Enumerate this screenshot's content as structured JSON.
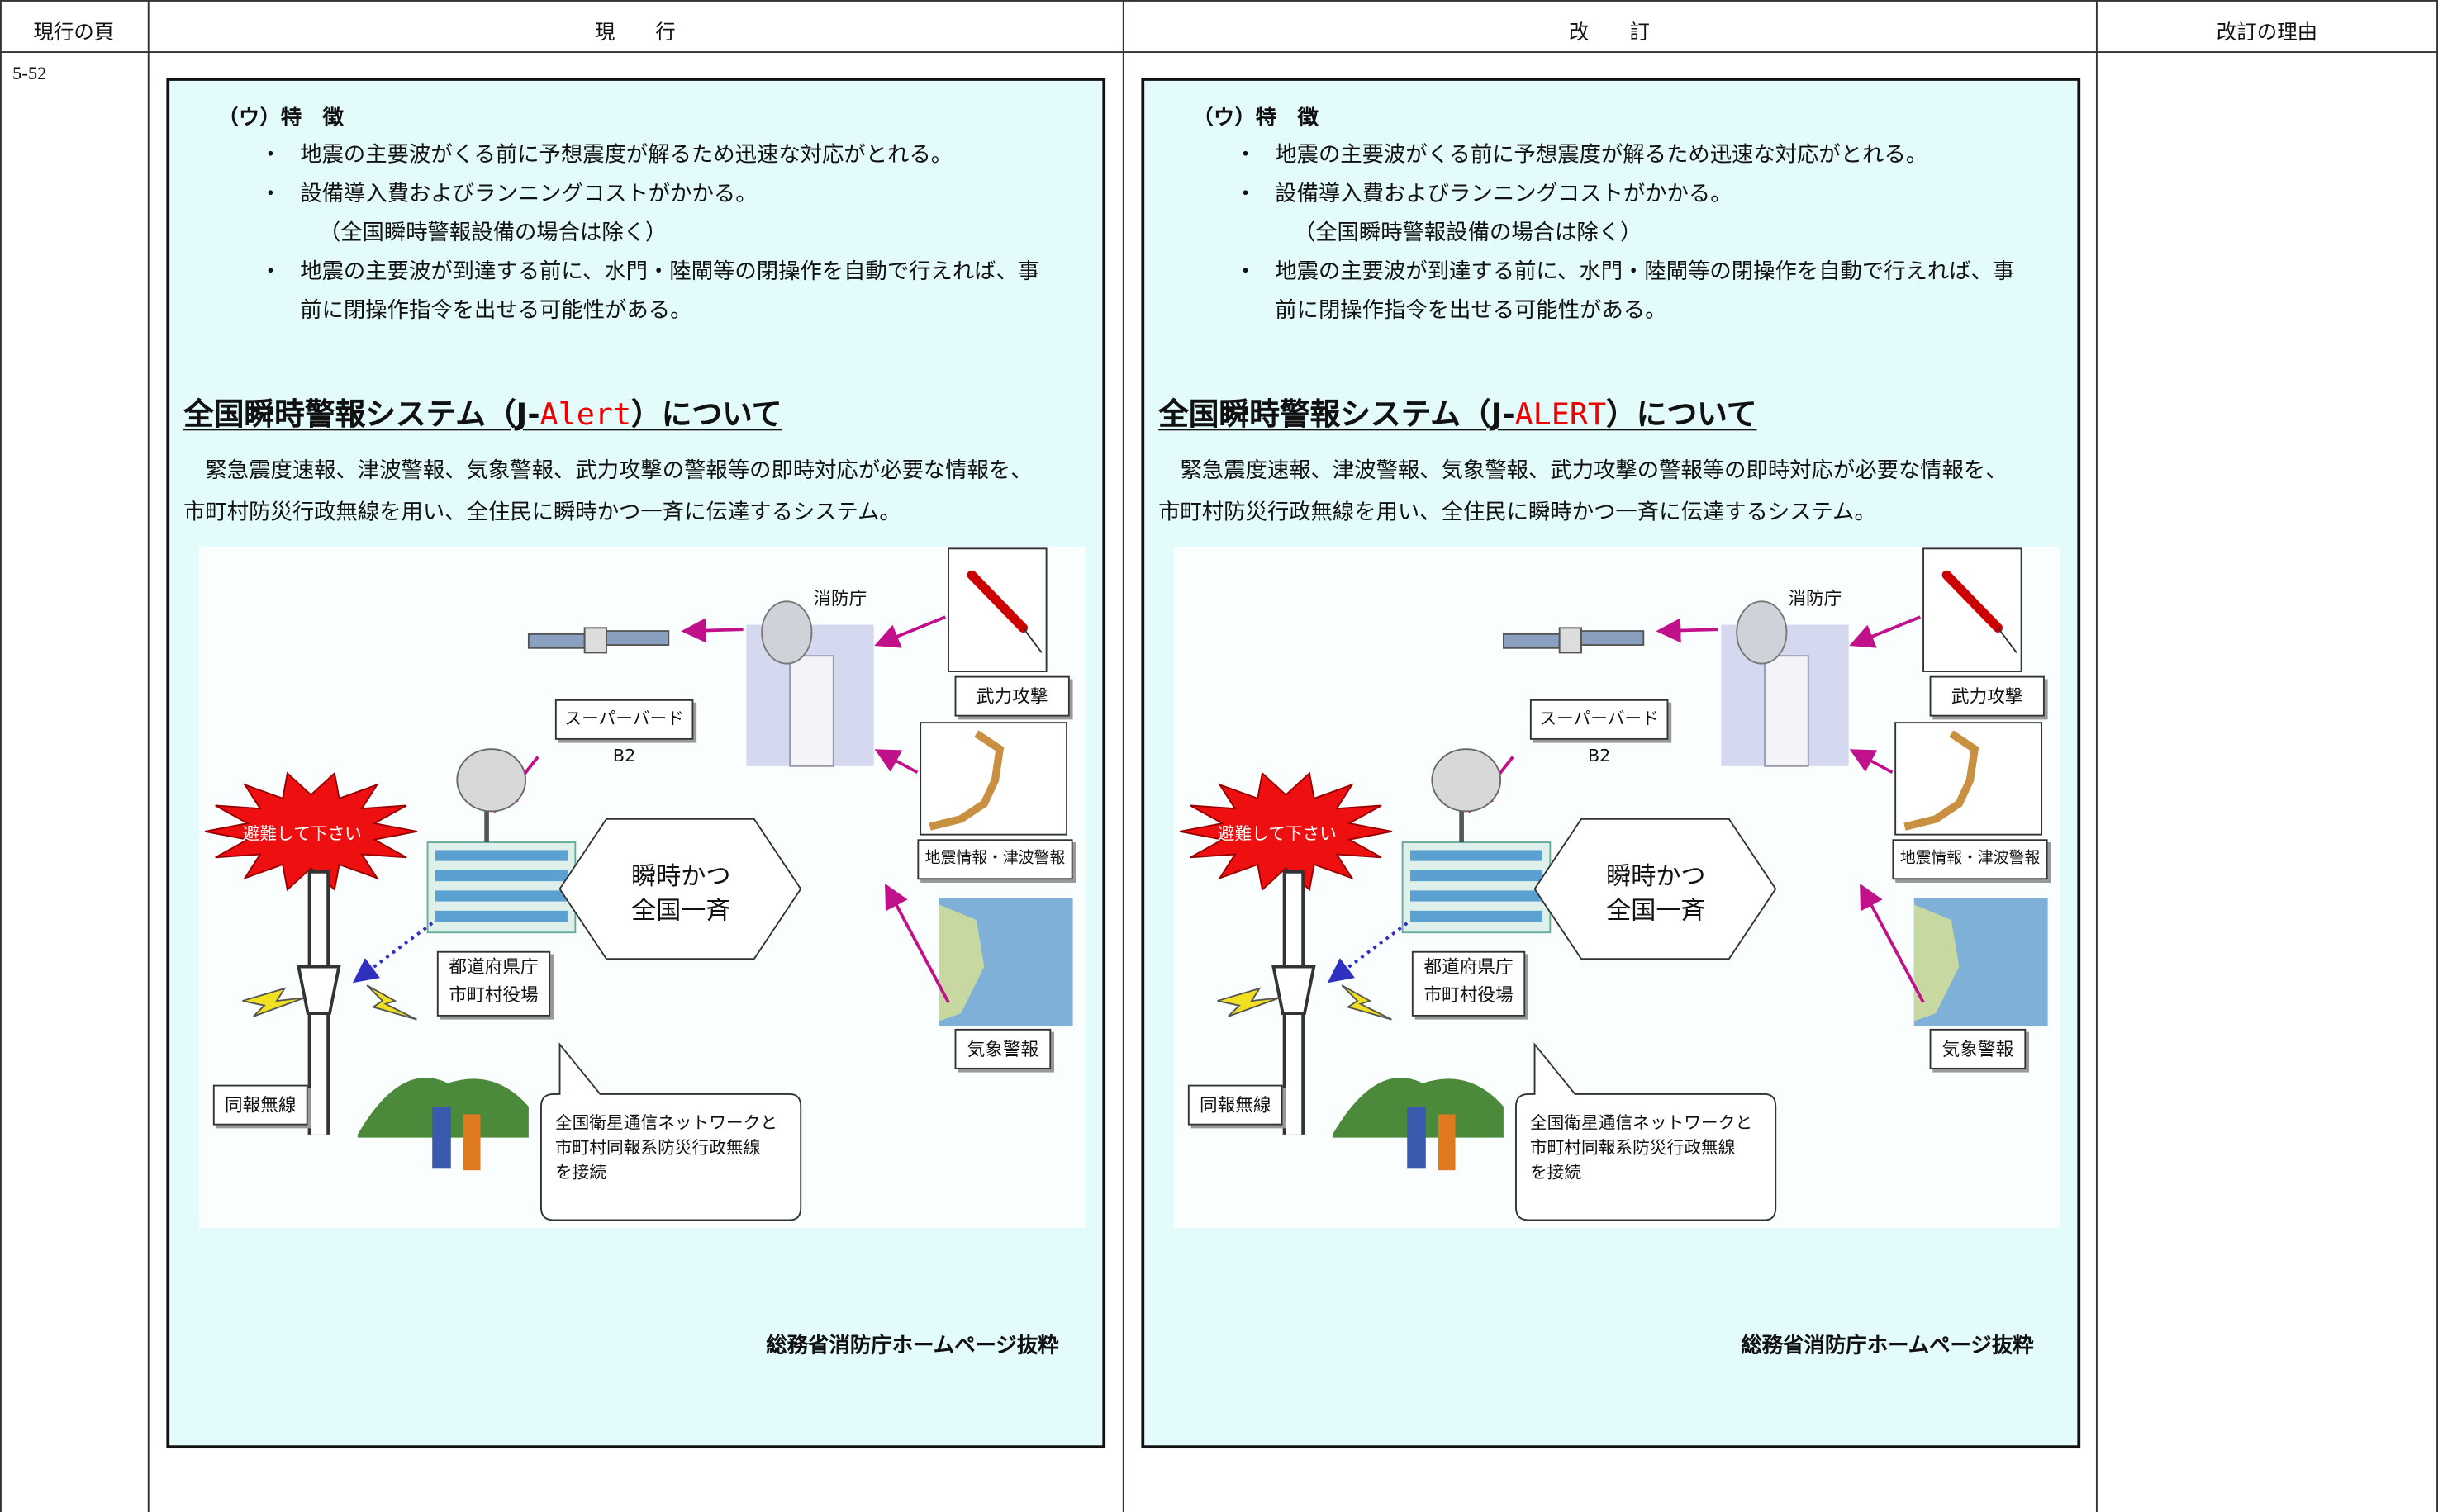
{
  "header": {
    "columns": [
      "現行の頁",
      "現　　行",
      "改　　訂",
      "改訂の理由"
    ]
  },
  "page": "5-52",
  "current": {
    "heading": "（ウ）特　徴",
    "items": [
      {
        "lines": [
          "地震の主要波がくる前に予想震度が解るため迅速な対応がとれる。"
        ]
      },
      {
        "lines": [
          "設備導入費およびランニングコストがかかる。",
          "（全国瞬時警報設備の場合は除く）"
        ]
      },
      {
        "lines": [
          "地震の主要波が到達する前に、水門・陸閘等の閉操作を自動で行えれば、事",
          "前に閉操作指令を出せる可能性がある。"
        ]
      }
    ],
    "title": {
      "before": "全国瞬時警報システム（J-",
      "highlight": "Alert",
      "after": "）について"
    },
    "paragraph": [
      "　緊急震度速報、津波警報、気象警報、武力攻撃の警報等の即時対応が必要な情報を、",
      "市町村防災行政無線を用い、全住民に瞬時かつ一斉に伝達するシステム。"
    ],
    "diagram": {
      "fdma": "消防庁",
      "attack": "武力攻撃",
      "quake": "地震情報・津波警報",
      "weather": "気象警報",
      "satellite": "スーパーバードB2",
      "evacuate": "避難して下さい",
      "office": [
        "都道府県庁",
        "市町村役場"
      ],
      "instant": [
        "瞬時かつ",
        "全国一斉"
      ],
      "radio": "同報無線",
      "network": [
        "全国衛星通信ネットワークと",
        "市町村同報系防災行政無線",
        "を接続"
      ]
    },
    "source": "総務省消防庁ホームページ抜粋"
  },
  "revised": {
    "heading": "（ウ）特　徴",
    "items": [
      {
        "lines": [
          "地震の主要波がくる前に予想震度が解るため迅速な対応がとれる。"
        ]
      },
      {
        "lines": [
          "設備導入費およびランニングコストがかかる。",
          "（全国瞬時警報設備の場合は除く）"
        ]
      },
      {
        "lines": [
          "地震の主要波が到達する前に、水門・陸閘等の閉操作を自動で行えれば、事",
          "前に閉操作指令を出せる可能性がある。"
        ]
      }
    ],
    "title": {
      "before": "全国瞬時警報システム（J-",
      "highlight": "ALERT",
      "after": "）について"
    },
    "paragraph": [
      "　緊急震度速報、津波警報、気象警報、武力攻撃の警報等の即時対応が必要な情報を、",
      "市町村防災行政無線を用い、全住民に瞬時かつ一斉に伝達するシステム。"
    ],
    "diagram": {
      "fdma": "消防庁",
      "attack": "武力攻撃",
      "quake": "地震情報・津波警報",
      "weather": "気象警報",
      "satellite": "スーパーバードB2",
      "evacuate": "避難して下さい",
      "office": [
        "都道府県庁",
        "市町村役場"
      ],
      "instant": [
        "瞬時かつ",
        "全国一斉"
      ],
      "radio": "同報無線",
      "network": [
        "全国衛星通信ネットワークと",
        "市町村同報系防災行政無線",
        "を接続"
      ]
    },
    "source": "総務省消防庁ホームページ抜粋"
  }
}
